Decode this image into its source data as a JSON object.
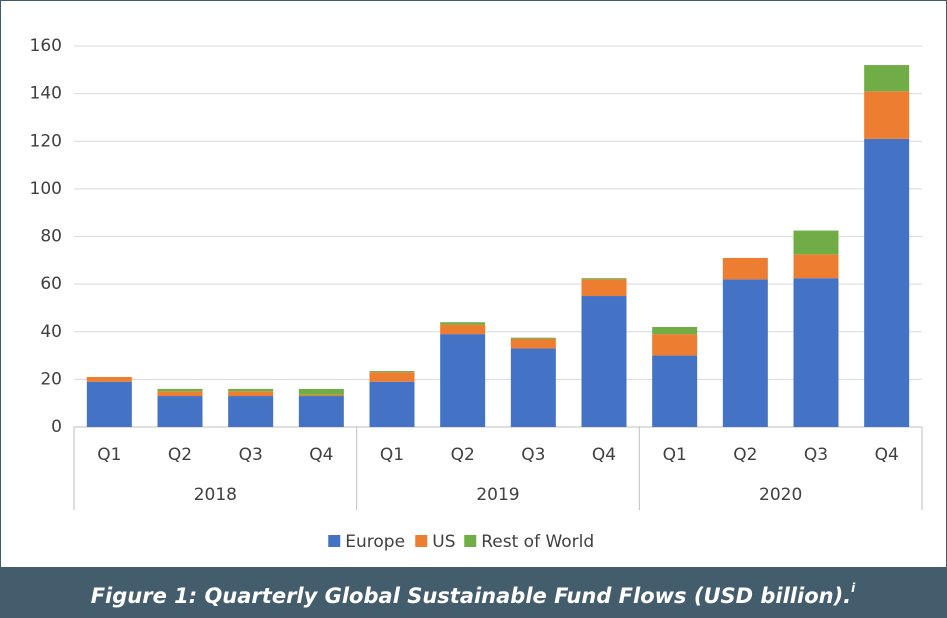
{
  "chart_data": {
    "type": "stacked_bar",
    "categories": [
      "Q1",
      "Q2",
      "Q3",
      "Q4",
      "Q1",
      "Q2",
      "Q3",
      "Q4",
      "Q1",
      "Q2",
      "Q3",
      "Q4"
    ],
    "groups": [
      "2018",
      "2019",
      "2020"
    ],
    "series": [
      {
        "name": "Europe",
        "color": "#4472c4",
        "values": [
          19,
          13,
          13,
          13,
          19,
          39,
          33,
          55,
          30,
          62,
          62.5,
          121
        ]
      },
      {
        "name": "US",
        "color": "#ed7d31",
        "values": [
          2,
          2,
          2,
          0.5,
          4,
          4,
          4,
          7,
          9,
          9,
          10,
          20
        ]
      },
      {
        "name": "Rest of World",
        "color": "#70ad47",
        "values": [
          0,
          1,
          1,
          2.5,
          0.5,
          1,
          0.5,
          0.5,
          3,
          0,
          10,
          11
        ]
      }
    ],
    "ylim": [
      0,
      160
    ],
    "yticks": [
      0,
      20,
      40,
      60,
      80,
      100,
      120,
      140,
      160
    ],
    "grid": true,
    "legend": "bottom",
    "caption": "Figure 1: Quarterly Global Sustainable Fund Flows (USD billion).",
    "caption_note": "i"
  }
}
